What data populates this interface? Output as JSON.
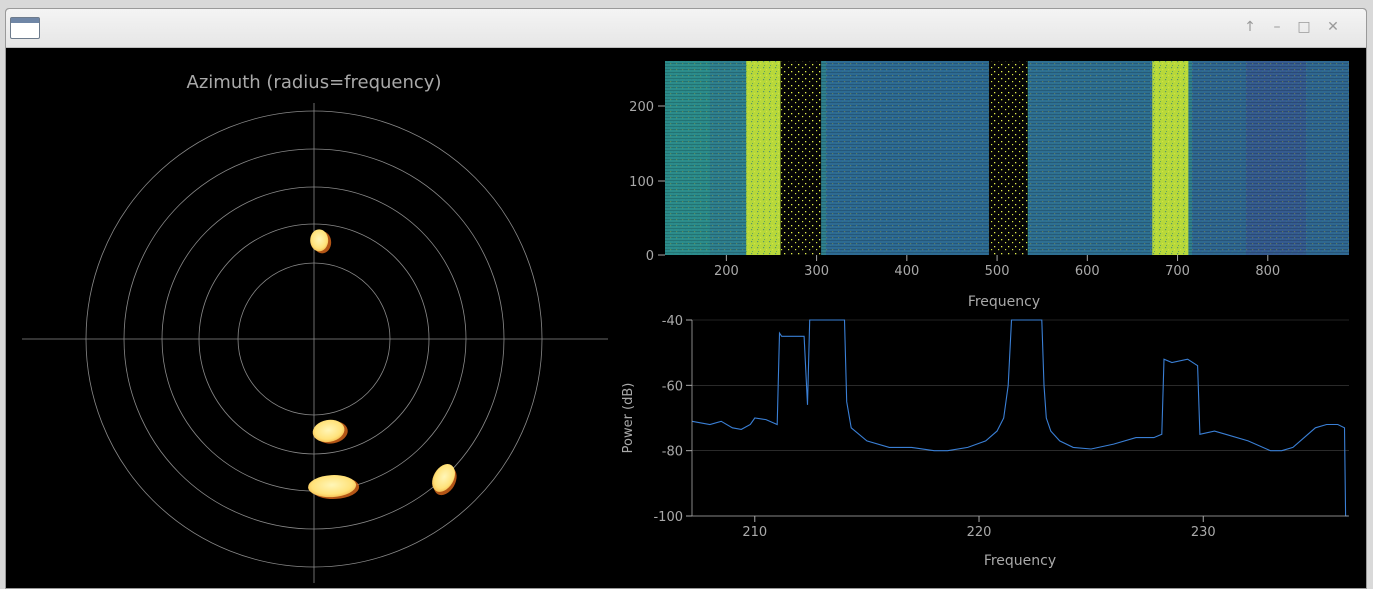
{
  "window": {
    "controls": {
      "shade": "↑",
      "minimize": "–",
      "maximize": "□",
      "close": "✕"
    }
  },
  "polar": {
    "title": "Azimuth (radius=frequency)",
    "blobs": [
      {
        "angle_deg": 3,
        "radius": 2.6
      },
      {
        "angle_deg": 171,
        "radius": 2.45
      },
      {
        "angle_deg": 173,
        "radius": 3.9
      },
      {
        "angle_deg": 137,
        "radius": 5.0
      }
    ]
  },
  "waterfall": {
    "xlabel": "Frequency",
    "xticks": [
      "200",
      "300",
      "400",
      "500",
      "600",
      "700",
      "800"
    ],
    "yticks": [
      "0",
      "100",
      "200"
    ],
    "bright_bands": [
      [
        222,
        260
      ],
      [
        672,
        712
      ]
    ],
    "dark_bands": [
      [
        260,
        305
      ],
      [
        491,
        534
      ]
    ]
  },
  "colors": {
    "line": "#3a7fd5",
    "text": "#a9a9a9",
    "grid": "#444444",
    "blob_fill": "#ffe27a",
    "blob_edge": "#e06a1c"
  },
  "chart_data": {
    "type": "line",
    "xlabel": "Frequency",
    "ylabel": "Power (dB)",
    "xlim": [
      207.2,
      236.5
    ],
    "ylim": [
      -100,
      -40
    ],
    "xticks": [
      "210",
      "220",
      "230"
    ],
    "yticks": [
      "-40",
      "-60",
      "-80",
      "-100"
    ],
    "series": [
      {
        "x": [
          207.2,
          208.0,
          208.5,
          209.0,
          209.4,
          209.8,
          210.0,
          210.5,
          211.0,
          211.1,
          211.2,
          212.0,
          212.2,
          212.35,
          212.45,
          212.6,
          213.0,
          213.8,
          214.0,
          214.1,
          214.3,
          215.0,
          216.0,
          217.0,
          218.0,
          218.6,
          219.5,
          220.3,
          220.8,
          221.1,
          221.3,
          221.45,
          221.55,
          222.8,
          222.9,
          223.0,
          223.2,
          223.6,
          224.2,
          225.0,
          226.0,
          227.0,
          227.8,
          228.15,
          228.25,
          228.6,
          229.3,
          229.75,
          229.85,
          230.5,
          231.0,
          232.0,
          233.0,
          233.5,
          234.0,
          234.5,
          235.0,
          235.5,
          236.0,
          236.3,
          236.35,
          236.45
        ],
        "y": [
          -71,
          -72,
          -71,
          -73,
          -73.5,
          -72,
          -70,
          -70.5,
          -72,
          -44,
          -45,
          -45,
          -45,
          -66,
          -40,
          -40,
          -40,
          -40,
          -40,
          -65,
          -73,
          -77,
          -79,
          -79,
          -80,
          -80,
          -79,
          -77,
          -74,
          -70,
          -60,
          -40,
          -40,
          -40,
          -60,
          -70,
          -74,
          -77,
          -79,
          -79.5,
          -78,
          -76,
          -76,
          -75,
          -52,
          -53,
          -52,
          -54,
          -75,
          -74,
          -75,
          -77,
          -80,
          -80,
          -79,
          -76,
          -73,
          -72,
          -72,
          -73,
          -100,
          -100
        ]
      }
    ]
  }
}
